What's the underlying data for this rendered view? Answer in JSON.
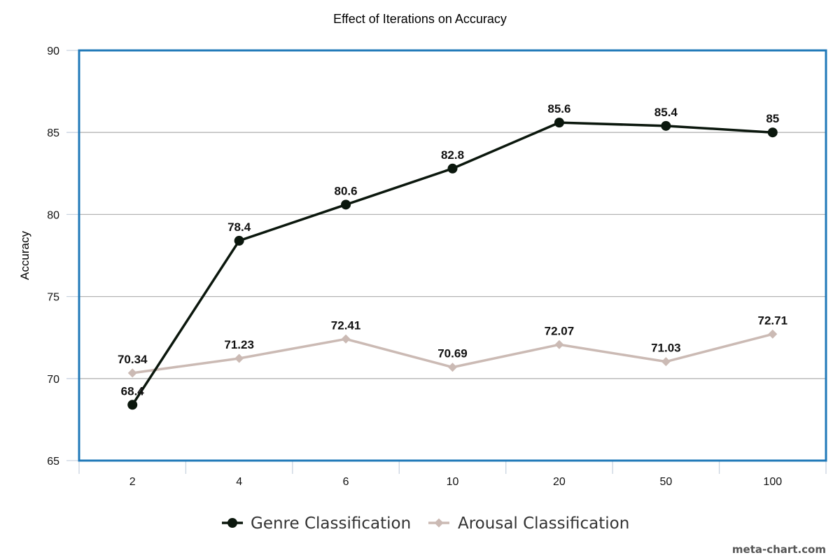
{
  "chart_data": {
    "type": "line",
    "title": "Effect of Iterations on Accuracy",
    "xlabel": "",
    "ylabel": "Accuracy",
    "categories": [
      "2",
      "4",
      "6",
      "10",
      "20",
      "50",
      "100"
    ],
    "ylim": [
      65,
      90
    ],
    "yticks": [
      "65",
      "70",
      "75",
      "80",
      "85",
      "90"
    ],
    "grid": true,
    "legend_position": "bottom",
    "series": [
      {
        "name": "Genre Classification",
        "values": [
          68.4,
          78.4,
          80.6,
          82.8,
          85.6,
          85.4,
          85
        ],
        "labels": [
          "68.4",
          "78.4",
          "80.6",
          "82.8",
          "85.6",
          "85.4",
          "85"
        ],
        "color": "#0b170d",
        "marker": "circle"
      },
      {
        "name": "Arousal Classification",
        "values": [
          70.34,
          71.23,
          72.41,
          70.69,
          72.07,
          71.03,
          72.71
        ],
        "labels": [
          "70.34",
          "71.23",
          "72.41",
          "70.69",
          "72.07",
          "71.03",
          "72.71"
        ],
        "color": "#cbbab4",
        "marker": "diamond"
      }
    ]
  },
  "frame_color": "#1f78b8",
  "grid_color": "#b5b5b5",
  "watermark": "meta-chart.com"
}
